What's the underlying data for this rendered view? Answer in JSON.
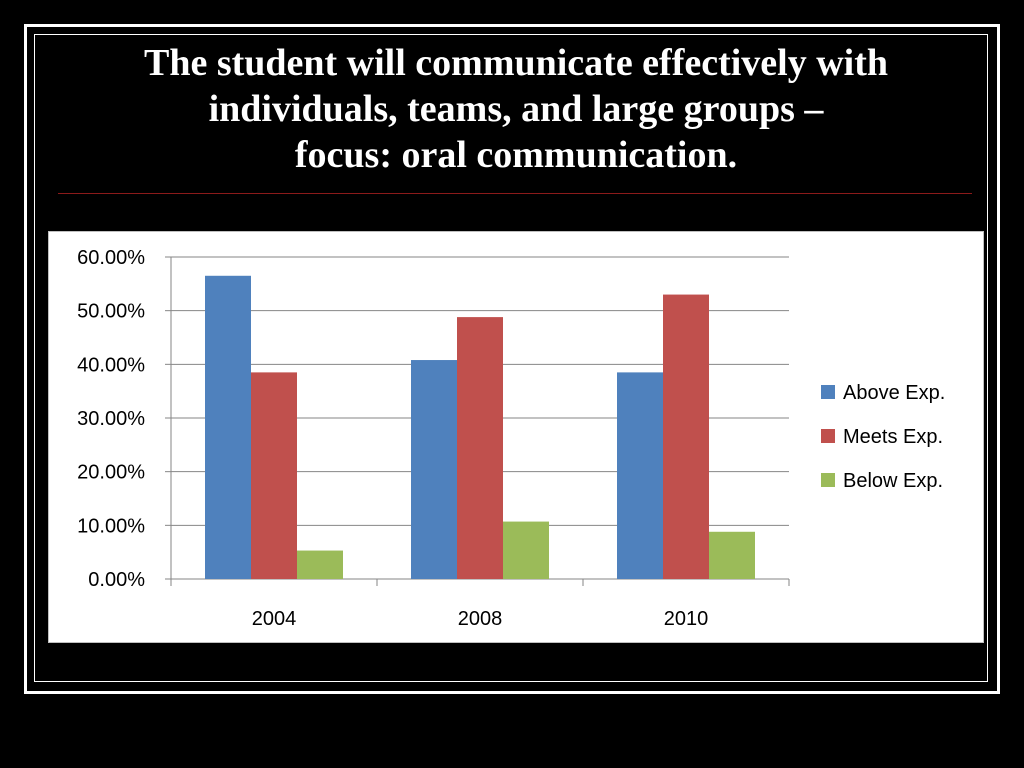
{
  "slide": {
    "title_lines": [
      "The student will communicate effectively with",
      "individuals, teams, and large groups –",
      "focus: oral communication."
    ]
  },
  "chart_data": {
    "type": "bar",
    "categories": [
      "2004",
      "2008",
      "2010"
    ],
    "series": [
      {
        "name": "Above Exp.",
        "values": [
          56.5,
          40.8,
          38.5
        ],
        "color": "#4f81bd"
      },
      {
        "name": "Meets Exp.",
        "values": [
          38.5,
          48.8,
          53.0
        ],
        "color": "#c0504d"
      },
      {
        "name": "Below Exp.",
        "values": [
          5.3,
          10.7,
          8.8
        ],
        "color": "#9bbb59"
      }
    ],
    "ylim": [
      0,
      60
    ],
    "y_ticks": [
      0,
      10,
      20,
      30,
      40,
      50,
      60
    ],
    "y_tick_labels": [
      "0.00%",
      "10.00%",
      "20.00%",
      "30.00%",
      "40.00%",
      "50.00%",
      "60.00%"
    ],
    "xlabel": "",
    "ylabel": "",
    "grid": true,
    "legend_position": "right"
  }
}
